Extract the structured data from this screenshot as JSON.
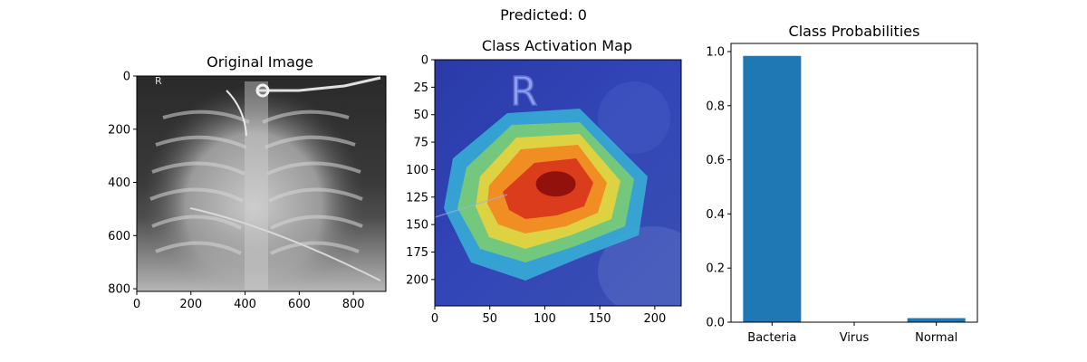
{
  "suptitle": "Predicted: 0",
  "chart_data": [
    {
      "type": "image",
      "title": "Original Image",
      "x_ticks": [
        0,
        200,
        400,
        600,
        800
      ],
      "y_ticks": [
        0,
        200,
        400,
        600,
        800
      ],
      "xlim": [
        0,
        920
      ],
      "ylim": [
        810,
        0
      ],
      "marker_text": "R"
    },
    {
      "type": "heatmap",
      "title": "Class Activation Map",
      "x_ticks": [
        0,
        50,
        100,
        150,
        200
      ],
      "y_ticks": [
        0,
        25,
        50,
        75,
        100,
        125,
        150,
        175,
        200
      ],
      "xlim": [
        0,
        224
      ],
      "ylim": [
        224,
        0
      ],
      "hotspot": {
        "x": 110,
        "y": 113
      },
      "marker_text": "R"
    },
    {
      "type": "bar",
      "title": "Class Probabilities",
      "categories": [
        "Bacteria",
        "Virus",
        "Normal"
      ],
      "values": [
        0.984,
        0.001,
        0.015
      ],
      "ylim": [
        0,
        1.03
      ],
      "y_ticks": [
        0.0,
        0.2,
        0.4,
        0.6,
        0.8,
        1.0
      ],
      "grid": false,
      "bar_color": "#1f77b4"
    }
  ]
}
